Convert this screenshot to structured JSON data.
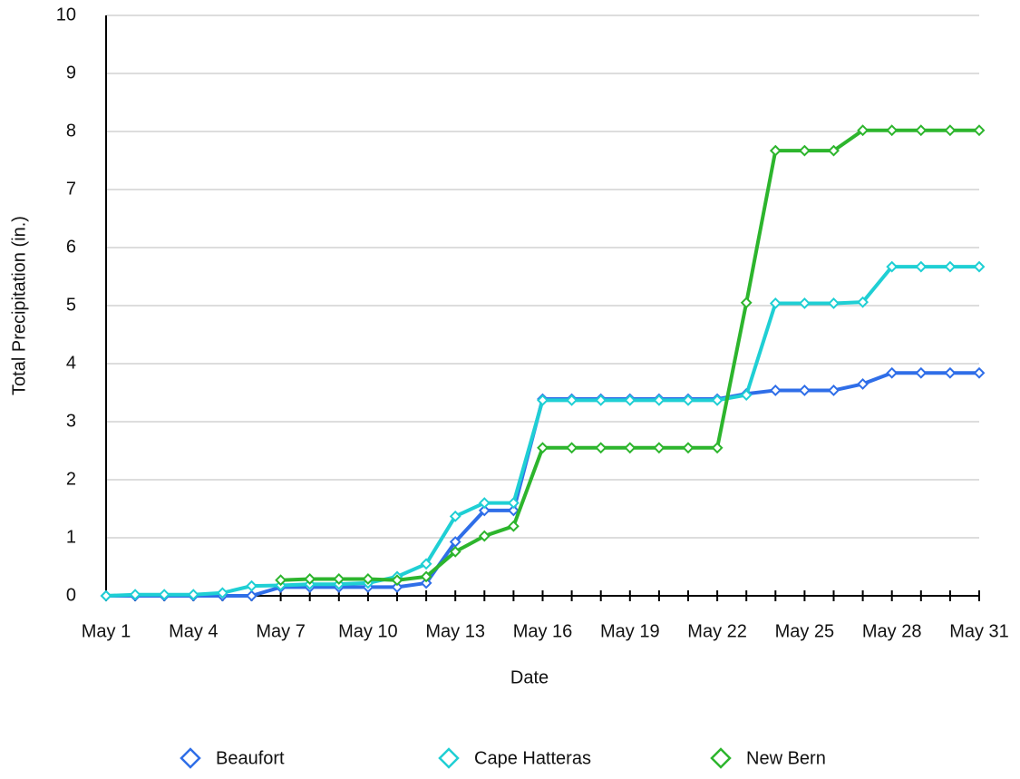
{
  "chart_data": {
    "type": "line",
    "xlabel": "Date",
    "ylabel": "Total Precipitation (in.)",
    "categories": [
      "May 1",
      null,
      null,
      "May 4",
      null,
      null,
      "May 7",
      null,
      null,
      "May 10",
      null,
      null,
      "May 13",
      null,
      null,
      "May 16",
      null,
      null,
      "May 19",
      null,
      null,
      "May 22",
      null,
      null,
      "May 25",
      null,
      null,
      "May 28",
      null,
      null,
      "May 31"
    ],
    "series": [
      {
        "name": "Beaufort",
        "color": "#2f6ee8",
        "values": [
          0,
          0,
          0,
          0,
          0,
          0,
          0.15,
          0.15,
          0.15,
          0.15,
          0.15,
          0.22,
          0.93,
          1.47,
          1.47,
          3.39,
          3.39,
          3.39,
          3.39,
          3.39,
          3.39,
          3.39,
          3.48,
          3.54,
          3.54,
          3.54,
          3.65,
          3.84,
          3.84,
          3.84,
          3.84
        ]
      },
      {
        "name": "Cape Hatteras",
        "color": "#1fcfd4",
        "values": [
          0,
          0.02,
          0.02,
          0.02,
          0.05,
          0.17,
          0.18,
          0.2,
          0.2,
          0.22,
          0.33,
          0.55,
          1.37,
          1.6,
          1.6,
          3.37,
          3.37,
          3.37,
          3.37,
          3.37,
          3.37,
          3.37,
          3.46,
          5.04,
          5.04,
          5.04,
          5.06,
          5.67,
          5.67,
          5.67,
          5.67
        ]
      },
      {
        "name": "New Bern",
        "color": "#2db52d",
        "values": [
          null,
          null,
          null,
          null,
          null,
          null,
          0.27,
          0.29,
          0.29,
          0.29,
          0.27,
          0.33,
          0.76,
          1.03,
          1.2,
          2.55,
          2.55,
          2.55,
          2.55,
          2.55,
          2.55,
          2.55,
          5.05,
          7.67,
          7.67,
          7.67,
          8.02,
          8.02,
          8.02,
          8.02,
          8.02
        ]
      }
    ],
    "ylim": [
      0,
      10
    ],
    "yticks": [
      0,
      1,
      2,
      3,
      4,
      5,
      6,
      7,
      8,
      9,
      10
    ],
    "grid": true,
    "legend": "bottom"
  }
}
